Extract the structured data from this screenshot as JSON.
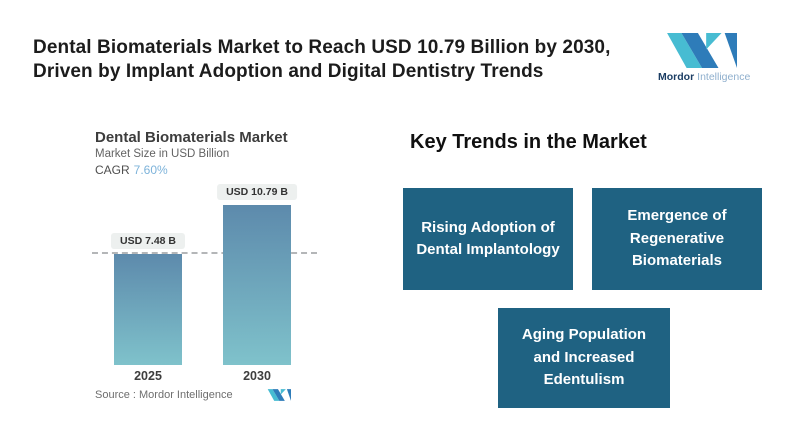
{
  "header": {
    "title_line1": "Dental Biomaterials Market to Reach USD 10.79 Billion by 2030,",
    "title_line2": "Driven by Implant Adoption and Digital Dentistry Trends",
    "brand": {
      "name_bold": "Mordor",
      "name_light": "Intelligence"
    }
  },
  "chart": {
    "title": "Dental Biomaterials Market",
    "subtitle": "Market Size in USD Billion",
    "cagr_label": "CAGR",
    "cagr_value": "7.60%",
    "source_label": "Source :  Mordor Intelligence"
  },
  "chart_data": {
    "type": "bar",
    "title": "Dental Biomaterials Market",
    "subtitle": "Market Size in USD Billion",
    "unit": "USD Billion",
    "cagr": "7.60%",
    "categories": [
      "2025",
      "2030"
    ],
    "values": [
      7.48,
      10.79
    ],
    "bar_labels": [
      "USD 7.48 B",
      "USD 10.79 B"
    ],
    "ylim": [
      0,
      11.5
    ],
    "reference_line": 7.48,
    "grid": false,
    "legend": false,
    "colors": {
      "bar_top": "#5d8aac",
      "bar_bottom": "#7fc2cb",
      "cagr_value": "#7db3da",
      "dashed_line": "#b4b6b8"
    }
  },
  "trends": {
    "heading": "Key Trends in the Market",
    "box_color": "#1f6282",
    "items": [
      {
        "label": "Rising Adoption of Dental Implantology"
      },
      {
        "label": "Emergence of Regenerative Biomaterials"
      },
      {
        "label": "Aging Population and Increased Edentulism"
      }
    ]
  },
  "colors": {
    "logo_teal": "#47bcd2",
    "logo_blue": "#2e7cb9"
  }
}
